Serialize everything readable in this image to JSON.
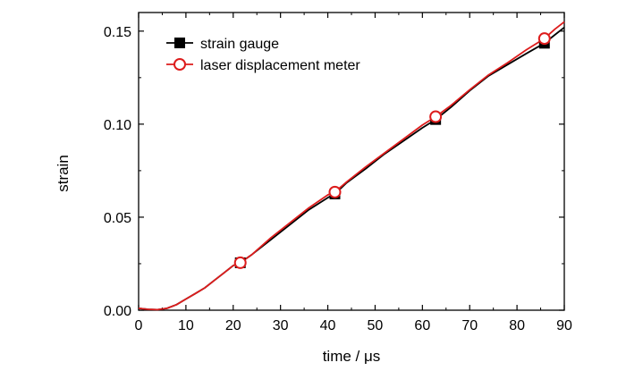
{
  "chart_data": {
    "type": "line",
    "xlabel": "time / μs",
    "ylabel": "strain",
    "xlim": [
      0,
      90
    ],
    "ylim": [
      0.0,
      0.16
    ],
    "xticks": [
      0,
      10,
      20,
      30,
      40,
      50,
      60,
      70,
      80,
      90
    ],
    "xtick_labels": [
      "0",
      "10",
      "20",
      "30",
      "40",
      "50",
      "60",
      "70",
      "80",
      "90"
    ],
    "yticks": [
      0.0,
      0.05,
      0.1,
      0.15
    ],
    "ytick_labels": [
      "0.00",
      "0.05",
      "0.10",
      "0.15"
    ],
    "grid": false,
    "legend_position": "top-left",
    "series": [
      {
        "name": "strain gauge",
        "color": "#000000",
        "marker": "filled-square",
        "x": [
          0,
          2,
          4,
          6,
          8,
          10,
          12,
          14,
          16,
          18,
          20,
          21.5,
          24,
          28,
          32,
          36,
          40,
          41.5,
          44,
          48,
          52,
          56,
          60,
          62.8,
          66,
          70,
          74,
          78,
          82,
          85.8,
          88,
          90
        ],
        "y": [
          0.001,
          0.0005,
          0.0003,
          0.001,
          0.003,
          0.006,
          0.009,
          0.012,
          0.016,
          0.02,
          0.024,
          0.0255,
          0.03,
          0.038,
          0.046,
          0.054,
          0.0605,
          0.0625,
          0.0685,
          0.076,
          0.084,
          0.091,
          0.098,
          0.1025,
          0.109,
          0.118,
          0.126,
          0.132,
          0.138,
          0.1435,
          0.148,
          0.152
        ],
        "marker_x": [
          21.5,
          41.5,
          62.8,
          85.8
        ],
        "marker_y": [
          0.0255,
          0.0625,
          0.1025,
          0.1435
        ]
      },
      {
        "name": "laser displacement meter",
        "color": "#dd1c1c",
        "marker": "open-circle",
        "x": [
          0,
          2,
          4,
          6,
          8,
          10,
          12,
          14,
          16,
          18,
          20,
          21.5,
          24,
          28,
          32,
          36,
          40,
          41.5,
          44,
          48,
          52,
          56,
          60,
          62.8,
          66,
          70,
          74,
          78,
          82,
          85.8,
          88,
          90
        ],
        "y": [
          0.001,
          0.0005,
          0.0003,
          0.001,
          0.003,
          0.006,
          0.009,
          0.012,
          0.016,
          0.02,
          0.024,
          0.0255,
          0.03,
          0.039,
          0.047,
          0.055,
          0.062,
          0.0635,
          0.069,
          0.077,
          0.0845,
          0.092,
          0.0995,
          0.104,
          0.11,
          0.1185,
          0.1265,
          0.133,
          0.14,
          0.146,
          0.151,
          0.155
        ],
        "marker_x": [
          21.5,
          41.5,
          62.8,
          85.8
        ],
        "marker_y": [
          0.0255,
          0.0635,
          0.104,
          0.146
        ]
      }
    ]
  }
}
